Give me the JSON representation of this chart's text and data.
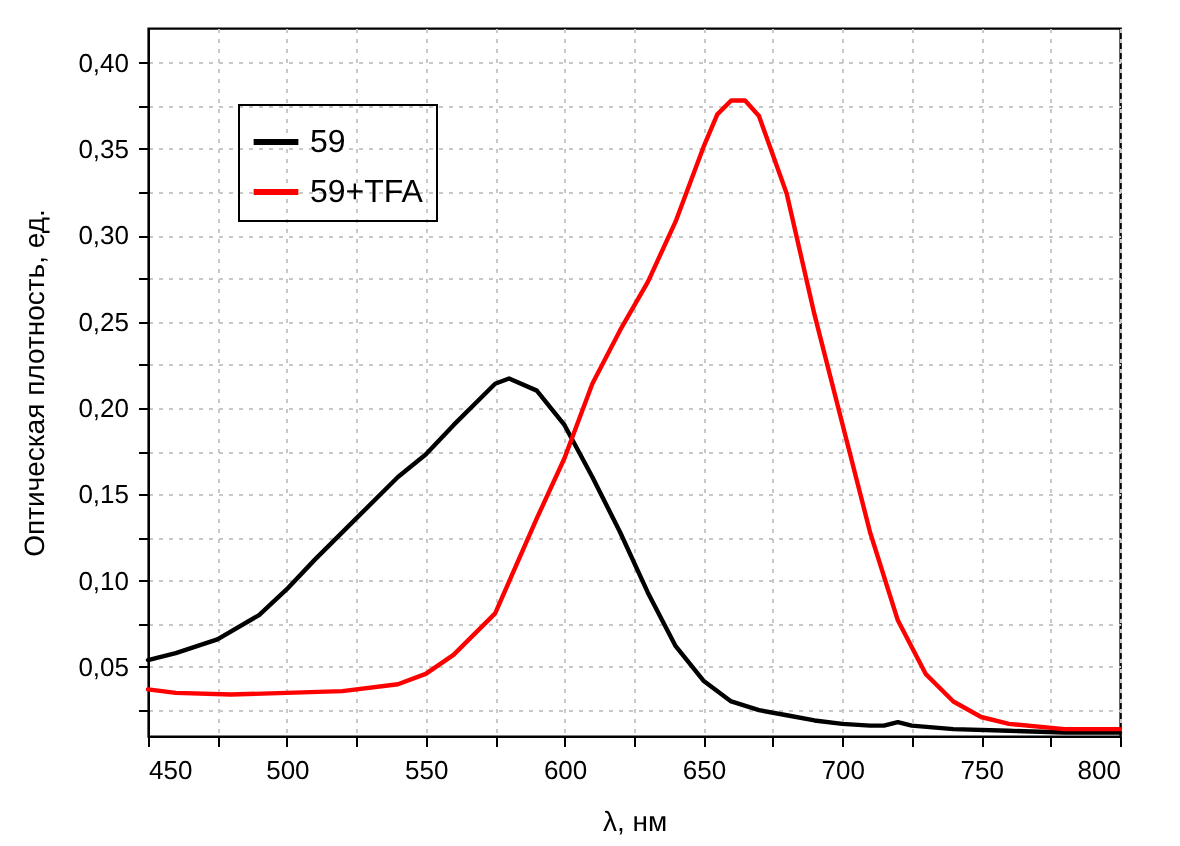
{
  "chart_data": {
    "type": "line",
    "xlabel": "λ, нм",
    "ylabel": "Оптическая плотность, ед.",
    "xlim": [
      450,
      800
    ],
    "xticks": [
      450,
      {
        "value": 475,
        "label": null
      },
      500,
      {
        "value": 525,
        "label": null
      },
      550,
      {
        "value": 575,
        "label": null
      },
      600,
      {
        "value": 625,
        "label": null
      },
      650,
      {
        "value": 675,
        "label": null
      },
      700,
      {
        "value": 725,
        "label": null
      },
      750,
      {
        "value": 775,
        "label": null
      },
      800
    ],
    "ylim": [
      0.01,
      0.42
    ],
    "yticks": [
      {
        "value": 0.025,
        "label": null
      },
      {
        "value": 0.05,
        "label": "0,05"
      },
      {
        "value": 0.075,
        "label": null
      },
      {
        "value": 0.1,
        "label": "0,10"
      },
      {
        "value": 0.125,
        "label": null
      },
      {
        "value": 0.15,
        "label": "0,15"
      },
      {
        "value": 0.175,
        "label": null
      },
      {
        "value": 0.2,
        "label": "0,20"
      },
      {
        "value": 0.225,
        "label": null
      },
      {
        "value": 0.25,
        "label": "0,25"
      },
      {
        "value": 0.275,
        "label": null
      },
      {
        "value": 0.3,
        "label": "0,30"
      },
      {
        "value": 0.325,
        "label": null
      },
      {
        "value": 0.35,
        "label": "0,35"
      },
      {
        "value": 0.375,
        "label": null
      },
      {
        "value": 0.4,
        "label": "0,40"
      }
    ],
    "grid": true,
    "legend": "top left",
    "line_style": "solid",
    "marker": "none",
    "series": [
      {
        "name": "59",
        "color": "#000000",
        "x": [
          450,
          460,
          475,
          490,
          500,
          510,
          525,
          540,
          550,
          560,
          575,
          580,
          590,
          600,
          610,
          620,
          630,
          640,
          650,
          660,
          670,
          680,
          690,
          700,
          710,
          715,
          720,
          725,
          740,
          760,
          780,
          800
        ],
        "values": [
          0.054,
          0.058,
          0.066,
          0.08,
          0.095,
          0.112,
          0.136,
          0.16,
          0.173,
          0.19,
          0.214,
          0.217,
          0.21,
          0.19,
          0.16,
          0.128,
          0.093,
          0.062,
          0.042,
          0.03,
          0.025,
          0.022,
          0.019,
          0.017,
          0.016,
          0.016,
          0.018,
          0.016,
          0.014,
          0.013,
          0.012,
          0.012
        ]
      },
      {
        "name": "59+TFA",
        "color": "#ff0000",
        "x": [
          450,
          460,
          480,
          500,
          520,
          540,
          550,
          560,
          575,
          590,
          600,
          610,
          620,
          630,
          640,
          650,
          655,
          660,
          665,
          670,
          680,
          690,
          700,
          710,
          720,
          730,
          740,
          750,
          760,
          780,
          800
        ],
        "values": [
          0.037,
          0.035,
          0.034,
          0.035,
          0.036,
          0.04,
          0.046,
          0.057,
          0.081,
          0.136,
          0.171,
          0.214,
          0.245,
          0.273,
          0.308,
          0.351,
          0.37,
          0.378,
          0.378,
          0.369,
          0.324,
          0.254,
          0.191,
          0.128,
          0.077,
          0.046,
          0.03,
          0.021,
          0.017,
          0.014,
          0.014
        ]
      }
    ]
  }
}
